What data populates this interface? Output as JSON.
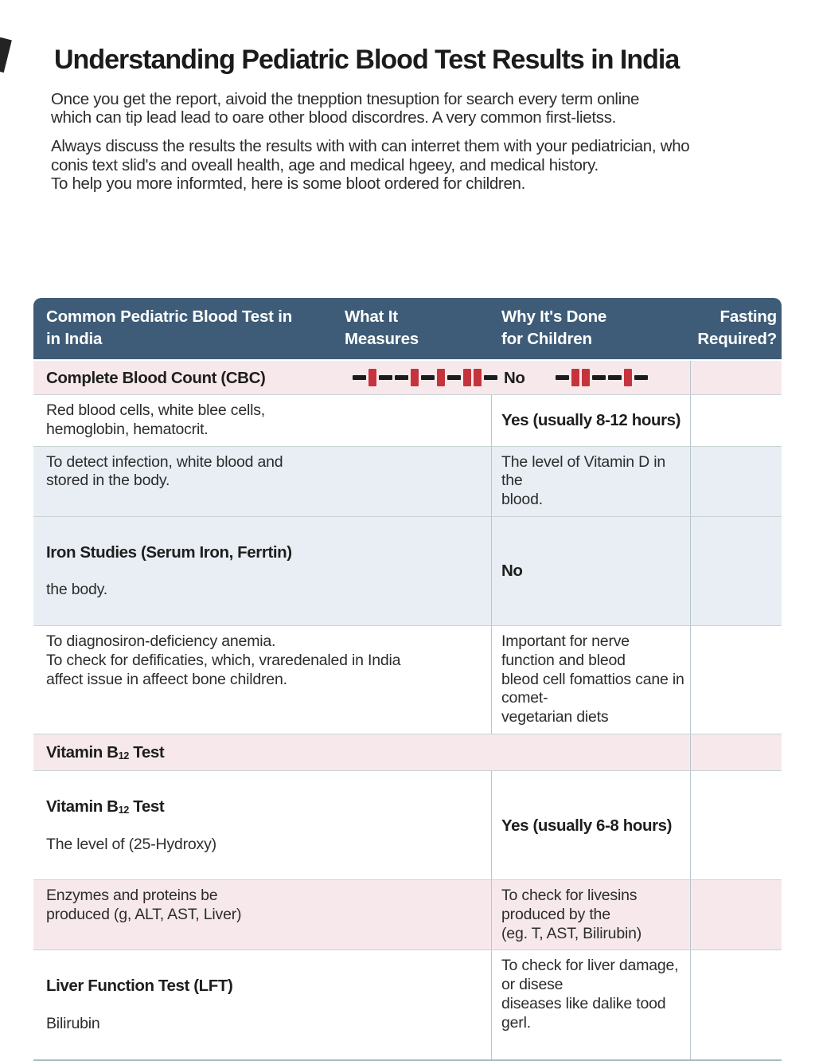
{
  "page": {
    "title": "Understanding Pediatric Blood Test Results in India",
    "paragraph_1": "Once you get the report, aivoid the tnepption tnesuption for search every term online\nwhich can tip lead lead to oare other blood discordres. A very common first-lietss.",
    "paragraph_2": "Always discuss the results the results with with can interret them with your pediatrician, who\nconis text slid's and oveall health, age and medical hgeey, and medical history.\nTo help you more informted, here is some bloot ordered for children."
  },
  "colors": {
    "header_bg": "#3e5c77",
    "header_text": "#ffffff",
    "row_pink": "#f7e9eb",
    "row_blue": "#e8eef4",
    "accent_red": "#c5343c",
    "dash_black": "#1c1c1c"
  },
  "table": {
    "headers": {
      "col1": "Common Pediatric Blood Test in\nin India",
      "col2": "What It\nMeasures",
      "col3": "Why It's Done\nfor Children",
      "col4": "Fasting\nRequired?"
    },
    "rows": {
      "cbc": {
        "test": "Complete Blood Count (CBC)",
        "fasting": "No",
        "measures_pattern": [
          "dash",
          "block",
          "dash",
          "dash",
          "block",
          "dash",
          "block",
          "dash",
          "block",
          "block",
          "dash"
        ],
        "why_pattern": [
          "dash",
          "block",
          "block",
          "dash",
          "dash",
          "block",
          "dash"
        ]
      },
      "cbc_detail": {
        "measures": "Red blood cells, white blee cells,\nhemoglobin, hematocrit.",
        "why": "Yes (usually 8-12 hours)"
      },
      "infection": {
        "measures": "To detect infection, white blood and\nstored in the body.",
        "why": "The level of Vitamin D in the\nblood."
      },
      "iron": {
        "test": "Iron Studies (Serum Iron, Ferrtin)",
        "detail": "the body.",
        "why": "No"
      },
      "iron_detail": {
        "measures": "To diagnosiron-deficiency anemia.\nTo check for defificaties, which, vraredenaled in India\naffect issue in affeect bone children.",
        "why": "Important for nerve function and bleod\nbleod cell fomattios cane in comet-\nvegetarian diets"
      },
      "b12_band": {
        "prefix": "Vitamin B",
        "subscript": "12",
        "suffix": " Test"
      },
      "b12": {
        "prefix": "Vitamin B",
        "subscript": "12",
        "suffix": " Test",
        "detail": "The level of (25-Hydroxy)",
        "why": "Yes (usually 6-8 hours)"
      },
      "lft_enzymes": {
        "measures": "Enzymes and proteins be\nproduced (g, ALT, AST, Liver)",
        "why": "To check for livesins produced by the\n(eg. T, AST, Bilirubin)"
      },
      "lft": {
        "test": "Liver Function Test (LFT)",
        "detail": "Bilirubin",
        "why": "To check for liver damage, or disese\ndiseases like dalike tood gerl."
      }
    }
  }
}
